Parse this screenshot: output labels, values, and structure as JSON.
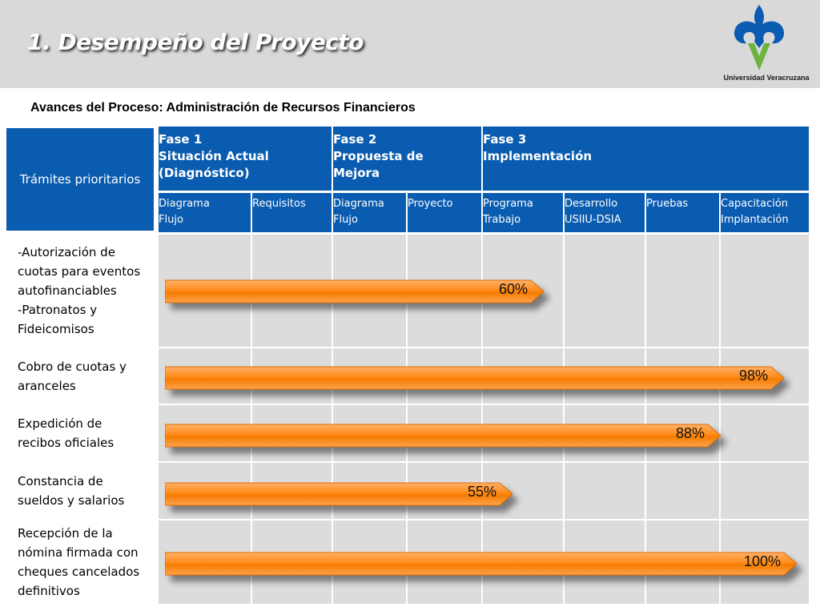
{
  "header": {
    "title": "1. Desempeño del Proyecto",
    "logo_text": "Universidad Veracruzana"
  },
  "subtitle": "Avances del Proceso:  Administración de Recursos Financieros",
  "table": {
    "corner_label": "Trámites prioritarios",
    "phases": [
      {
        "title": "Fase 1",
        "subtitle": "Situación Actual",
        "note": "(Diagnóstico)"
      },
      {
        "title": "Fase 2",
        "subtitle": "Propuesta de",
        "note": "Mejora"
      },
      {
        "title": "Fase 3",
        "subtitle": "Implementación",
        "note": ""
      }
    ],
    "subcolumns": [
      {
        "line1": "Diagrama",
        "line2": "Flujo"
      },
      {
        "line1": "Requisitos",
        "line2": ""
      },
      {
        "line1": "Diagrama",
        "line2": "Flujo"
      },
      {
        "line1": "Proyecto",
        "line2": ""
      },
      {
        "line1": "Programa",
        "line2": "Trabajo"
      },
      {
        "line1": "Desarrollo",
        "line2": "USIIU-DSIA"
      },
      {
        "line1": "Pruebas",
        "line2": ""
      },
      {
        "line1": "Capacitación",
        "line2": "Implantación"
      }
    ],
    "rows": [
      {
        "lines": [
          "-Autorización de",
          "cuotas para eventos",
          "autofinanciables",
          "-Patronatos y",
          "Fideicomisos"
        ],
        "progress": 60,
        "progress_label": "60%"
      },
      {
        "lines": [
          "Cobro de cuotas y",
          "aranceles"
        ],
        "progress": 98,
        "progress_label": "98%"
      },
      {
        "lines": [
          "Expedición de",
          "recibos oficiales"
        ],
        "progress": 88,
        "progress_label": "88%"
      },
      {
        "lines": [
          "Constancia de",
          "sueldos y salarios"
        ],
        "progress": 55,
        "progress_label": "55%"
      },
      {
        "lines": [
          "Recepción de la",
          "nómina firmada con",
          "cheques cancelados",
          "definitivos"
        ],
        "progress": 100,
        "progress_label": "100%"
      }
    ]
  },
  "colors": {
    "header_blue": "#0a5cb0",
    "bar_orange": "#ff8c1a",
    "grid_gray": "#dcdcdc"
  }
}
